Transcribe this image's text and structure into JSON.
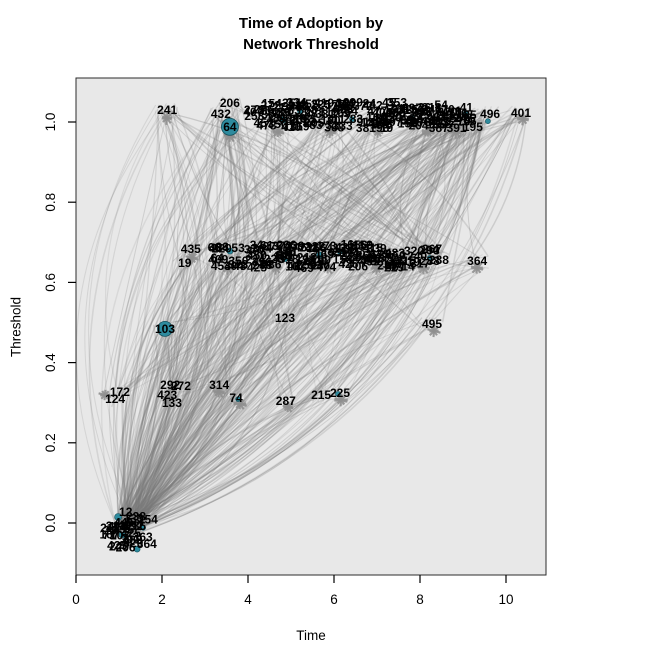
{
  "title": {
    "line1": "Time of Adoption by",
    "line2": "Network Threshold"
  },
  "chart_data": {
    "type": "scatter",
    "title": "Time of Adoption by Network Threshold",
    "xlabel": "Time",
    "ylabel": "Threshold",
    "xlim": [
      0,
      11
    ],
    "ylim": [
      -0.05,
      1.05
    ],
    "grid": false,
    "legend": "none",
    "background": "#e8e8e8",
    "colors": {
      "edge": "#787878",
      "label": "#000000",
      "adopter": "#2e8b9e",
      "plot_border": "#2b2b2b"
    },
    "x_ticks": {
      "labels": [
        "0",
        "2",
        "4",
        "6",
        "8",
        "10"
      ],
      "values": [
        0,
        2,
        4,
        6,
        8,
        10
      ]
    },
    "y_ticks": {
      "labels": [
        "0.0",
        "0.2",
        "0.4",
        "0.6",
        "0.8",
        "1.0"
      ],
      "values": [
        0,
        0.2,
        0.4,
        0.6,
        0.8,
        1.0
      ]
    },
    "points": [
      {
        "label": "241",
        "t": 2.12,
        "th": 1.03,
        "row": "top"
      },
      {
        "label": "206",
        "t": 3.58,
        "th": 1.047,
        "row": "top"
      },
      {
        "label": "432",
        "t": 3.37,
        "th": 1.02,
        "row": "top"
      },
      {
        "label": "64",
        "t": 3.58,
        "th": 0.988,
        "row": "top",
        "r": 8.5
      },
      {
        "label": "470",
        "t": 8.74,
        "th": 1.025,
        "row": "top"
      },
      {
        "label": "35",
        "t": 9.16,
        "th": 1.017,
        "row": "top"
      },
      {
        "label": "496",
        "t": 9.63,
        "th": 1.02,
        "row": "top"
      },
      {
        "label": "195",
        "t": 9.23,
        "th": 0.988,
        "row": "top"
      },
      {
        "label": "401",
        "t": 10.35,
        "th": 1.022,
        "row": "top"
      },
      {
        "label": "435",
        "t": 2.67,
        "th": 0.683,
        "row": "s"
      },
      {
        "label": "19",
        "t": 2.53,
        "th": 0.648,
        "row": "s"
      },
      {
        "label": "93",
        "t": 3.4,
        "th": 0.688,
        "row": "s"
      },
      {
        "label": "53",
        "t": 3.77,
        "th": 0.686,
        "row": "s"
      },
      {
        "label": "454",
        "t": 3.37,
        "th": 0.641,
        "row": "s"
      },
      {
        "label": "48",
        "t": 3.81,
        "th": 0.641,
        "row": "s"
      },
      {
        "label": "320",
        "t": 7.86,
        "th": 0.678,
        "row": "s"
      },
      {
        "label": "204",
        "t": 8.21,
        "th": 0.681,
        "row": "s"
      },
      {
        "label": "415",
        "t": 7.67,
        "th": 0.653,
        "row": "s"
      },
      {
        "label": "238",
        "t": 8.23,
        "th": 0.653,
        "row": "s"
      },
      {
        "label": "288",
        "t": 8.44,
        "th": 0.656,
        "row": "s"
      },
      {
        "label": "364",
        "t": 9.33,
        "th": 0.653,
        "row": "s"
      },
      {
        "label": "103",
        "t": 2.07,
        "th": 0.484,
        "row": "m",
        "r": 7.5
      },
      {
        "label": "123",
        "t": 4.86,
        "th": 0.511,
        "row": "m"
      },
      {
        "label": "495",
        "t": 8.28,
        "th": 0.496,
        "row": "m"
      },
      {
        "label": "172",
        "t": 1.02,
        "th": 0.327,
        "row": "l"
      },
      {
        "label": "124",
        "t": 0.91,
        "th": 0.309,
        "row": "l"
      },
      {
        "label": "292",
        "t": 2.19,
        "th": 0.344,
        "row": "l"
      },
      {
        "label": "272",
        "t": 2.44,
        "th": 0.342,
        "row": "l"
      },
      {
        "label": "423",
        "t": 2.12,
        "th": 0.319,
        "row": "l"
      },
      {
        "label": "133",
        "t": 2.23,
        "th": 0.299,
        "row": "l"
      },
      {
        "label": "314",
        "t": 3.33,
        "th": 0.344,
        "row": "l"
      },
      {
        "label": "74",
        "t": 3.72,
        "th": 0.312,
        "row": "l"
      },
      {
        "label": "287",
        "t": 4.88,
        "th": 0.304,
        "row": "l"
      },
      {
        "label": "215",
        "t": 5.7,
        "th": 0.319,
        "row": "l"
      },
      {
        "label": "225",
        "t": 6.14,
        "th": 0.324,
        "row": "l"
      }
    ],
    "clusters": [
      {
        "t": 4.7,
        "th": 1.017,
        "w": 1.16,
        "h": 0.065,
        "n": 30,
        "row": "top",
        "note": "dense overlapping labels, illegible"
      },
      {
        "t": 5.91,
        "th": 1.017,
        "w": 1.07,
        "h": 0.065,
        "n": 28,
        "row": "top",
        "note": "dense overlapping labels, illegible"
      },
      {
        "t": 7.02,
        "th": 1.017,
        "w": 1.0,
        "h": 0.065,
        "n": 26,
        "row": "top",
        "note": "dense overlapping labels, illegible"
      },
      {
        "t": 8.19,
        "th": 1.017,
        "w": 1.02,
        "h": 0.065,
        "n": 26,
        "row": "top",
        "note": "dense overlapping labels, illegible"
      },
      {
        "t": 8.84,
        "th": 1.01,
        "w": 0.56,
        "h": 0.055,
        "n": 12,
        "row": "top",
        "note": "dense overlapping labels, illegible"
      },
      {
        "t": 3.53,
        "th": 0.663,
        "w": 0.7,
        "h": 0.05,
        "n": 8,
        "row": "s",
        "note": "overlapping labels, partly legible"
      },
      {
        "t": 4.65,
        "th": 0.665,
        "w": 1.07,
        "h": 0.06,
        "n": 26,
        "row": "s",
        "note": "dense overlapping labels, illegible"
      },
      {
        "t": 5.86,
        "th": 0.665,
        "w": 1.12,
        "h": 0.06,
        "n": 28,
        "row": "s",
        "note": "dense overlapping labels, illegible"
      },
      {
        "t": 7.0,
        "th": 0.665,
        "w": 0.98,
        "h": 0.06,
        "n": 24,
        "row": "s",
        "note": "dense overlapping labels, illegible"
      },
      {
        "t": 8.09,
        "th": 0.665,
        "w": 0.8,
        "h": 0.05,
        "n": 6,
        "row": "s",
        "note": "overlapping labels, partly legible"
      },
      {
        "t": 1.19,
        "th": -0.017,
        "w": 0.98,
        "h": 0.095,
        "n": 26,
        "row": "bc",
        "note": "dense overlapping labels at time~1, threshold 0"
      }
    ],
    "teal_marks": [
      {
        "t": 3.77,
        "th": 0.309,
        "r": 2.5
      },
      {
        "t": 6.09,
        "th": 0.322,
        "r": 2.5
      },
      {
        "t": 9.07,
        "th": 1.02,
        "r": 3.0
      },
      {
        "t": 9.58,
        "th": 1.002,
        "r": 2.5
      },
      {
        "t": 4.81,
        "th": 1.005,
        "r": 3.0
      },
      {
        "t": 5.21,
        "th": 1.027,
        "r": 2.5
      },
      {
        "t": 6.42,
        "th": 1.007,
        "r": 2.5
      },
      {
        "t": 7.81,
        "th": 1.01,
        "r": 2.5
      },
      {
        "t": 5.67,
        "th": 0.668,
        "r": 3.0
      },
      {
        "t": 4.86,
        "th": 0.658,
        "r": 2.5
      },
      {
        "t": 6.14,
        "th": 0.676,
        "r": 2.5
      },
      {
        "t": 8.23,
        "th": 0.661,
        "r": 2.5
      },
      {
        "t": 3.58,
        "th": 0.678,
        "r": 3.0
      },
      {
        "t": 0.98,
        "th": 0.015,
        "r": 3.5
      },
      {
        "t": 1.42,
        "th": -0.065,
        "r": 3.0
      },
      {
        "t": 1.07,
        "th": -0.03,
        "r": 3.0
      },
      {
        "t": 1.56,
        "th": -0.012,
        "r": 2.5
      }
    ],
    "edges_note": "hundreds of translucent gray curved network edges connecting vertices, densest from the time~1/threshold~0 cluster fanning up-right"
  }
}
